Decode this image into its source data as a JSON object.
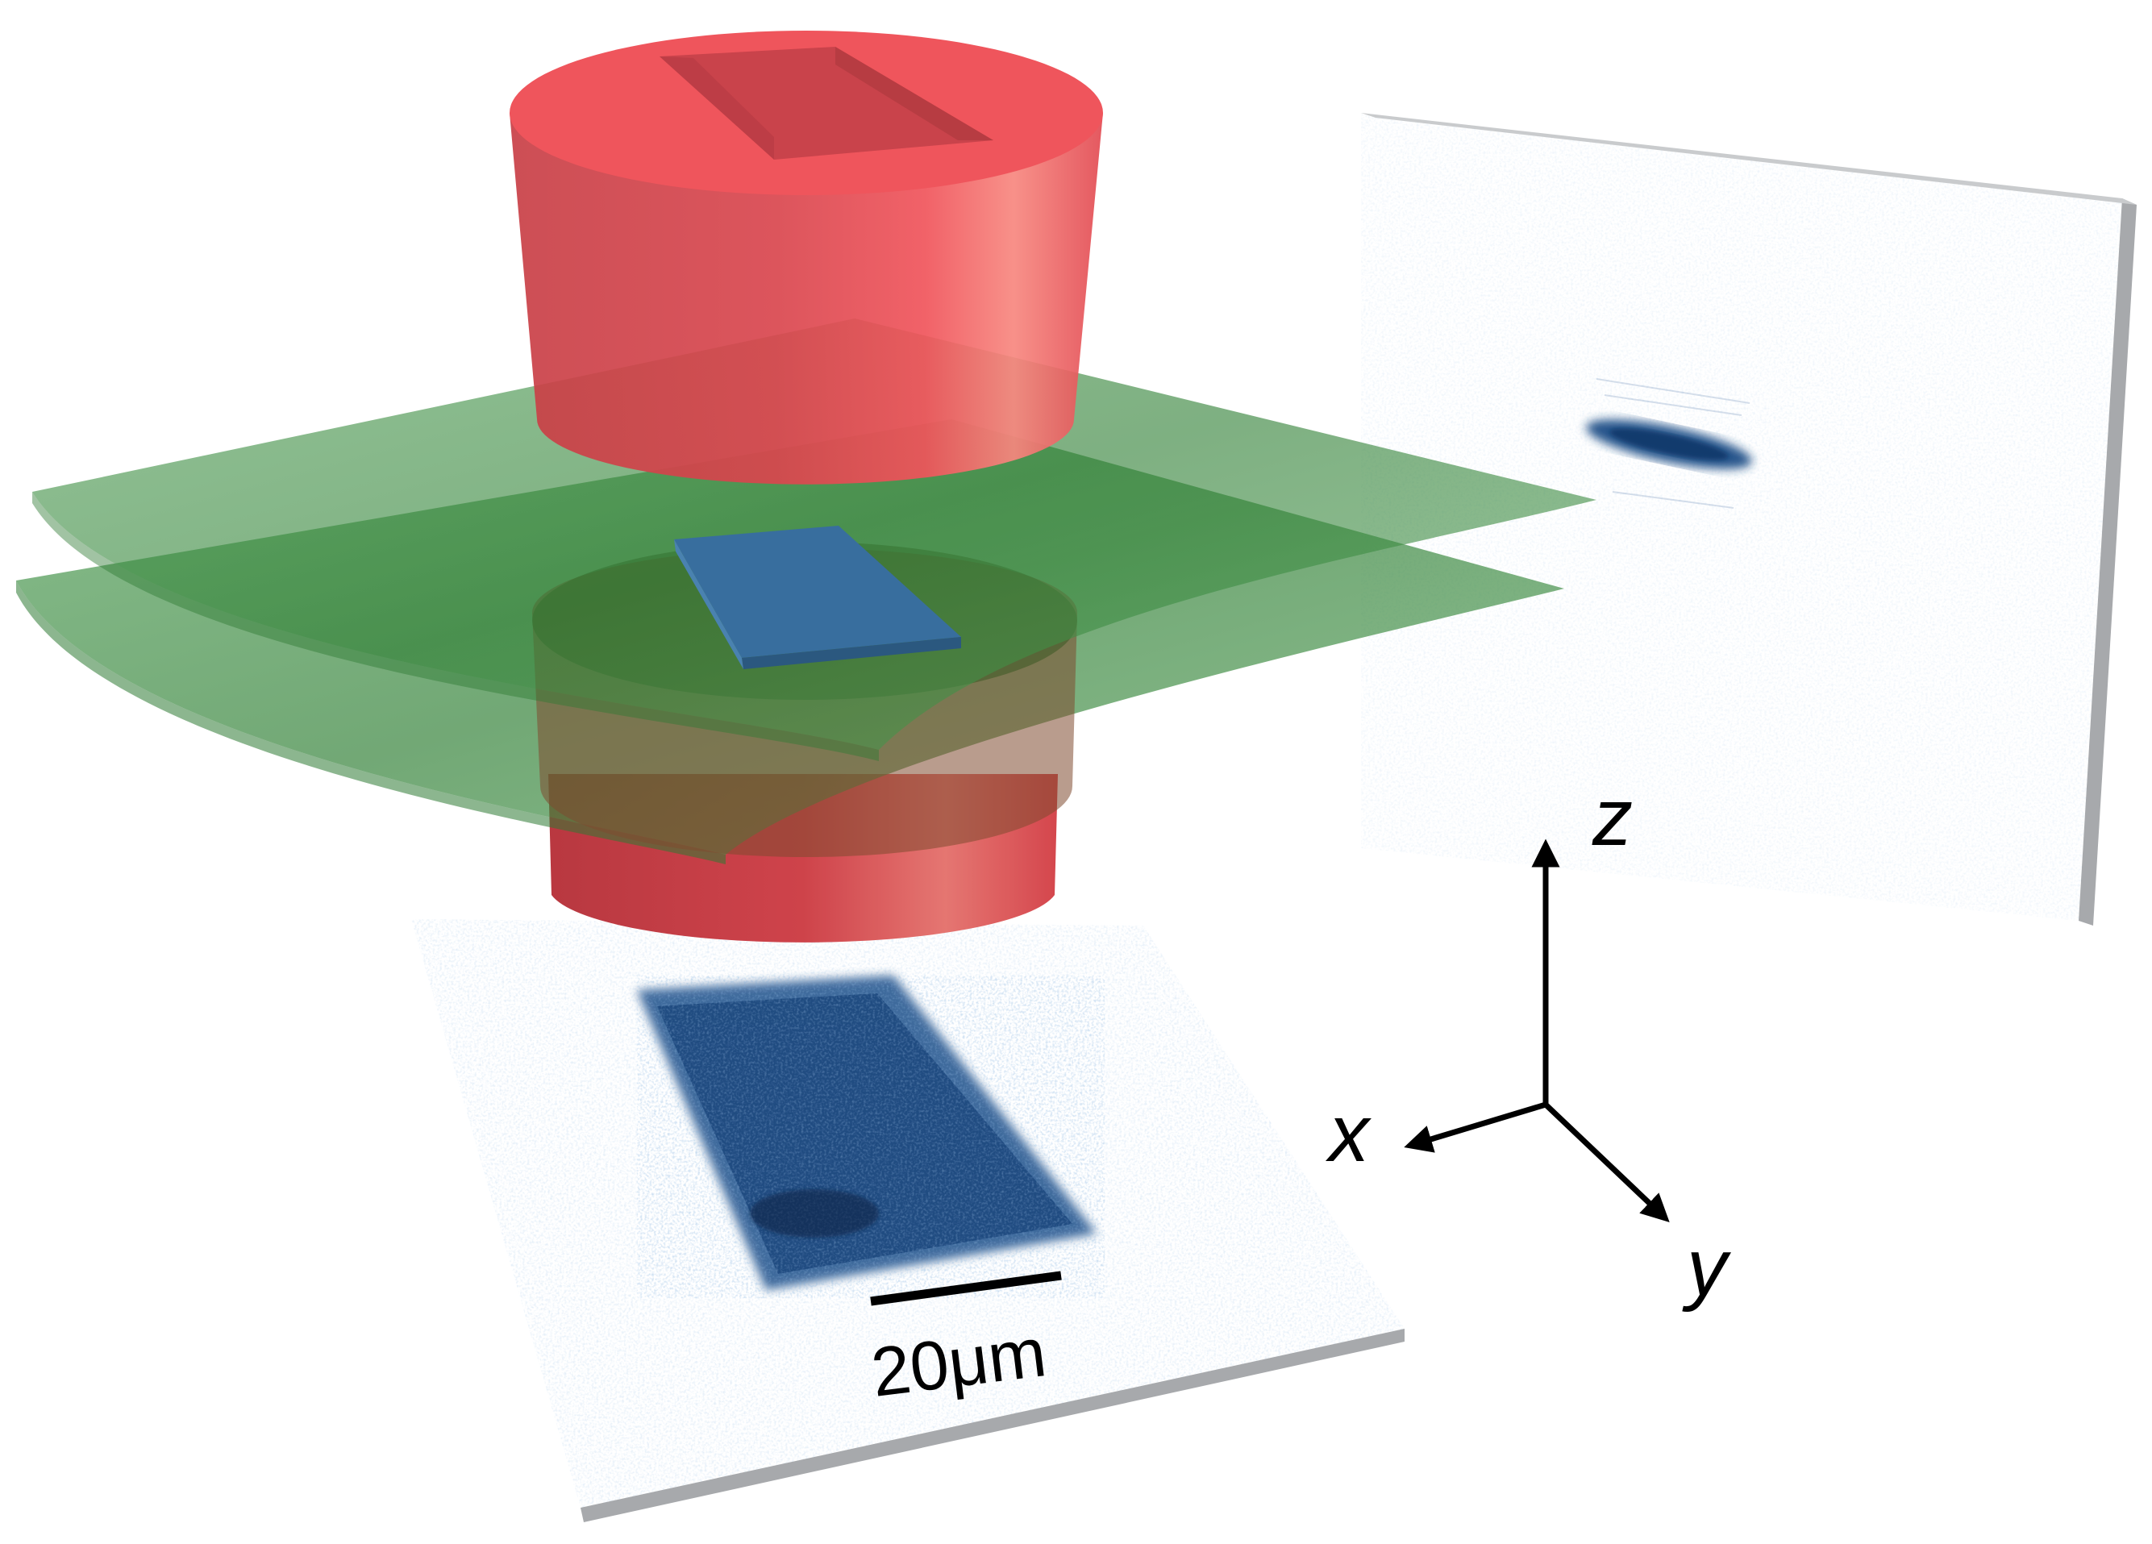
{
  "scale_bar": {
    "label": "20μm"
  },
  "axes": {
    "z_label": "z",
    "x_label": "x",
    "y_label": "y"
  },
  "colors": {
    "beam_red": "#e8454e",
    "sheet_green": "#3f9a3c",
    "atom_cloud_blue": "#1f4f87",
    "sample_block_blue": "#356d9c",
    "screen_edge_gray": "#a7a9ac"
  },
  "icons": {
    "axis_arrows": "arrow-icon"
  }
}
